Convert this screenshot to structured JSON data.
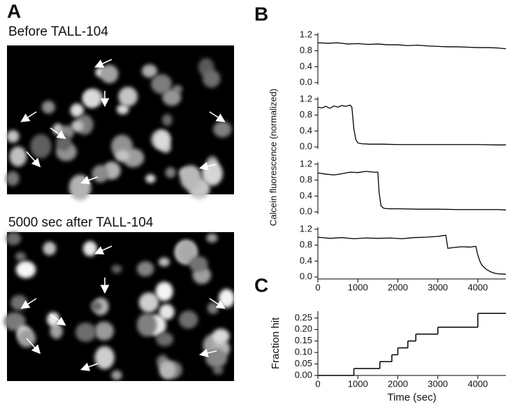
{
  "panel_labels": {
    "a": "A",
    "b": "B",
    "c": "C"
  },
  "images": [
    {
      "caption": "Before TALL-104"
    },
    {
      "caption": "5000 sec after TALL-104"
    }
  ],
  "shared_ylabel": "Calcein fluorescence (normalized)",
  "chart_data": [
    {
      "type": "line",
      "color": "#000000",
      "xlim": [
        0,
        4700
      ],
      "ylim": [
        -0.05,
        1.25
      ],
      "yticks": [
        {
          "value": 0,
          "label": "0.0"
        },
        0.4,
        0.8,
        1.2
      ],
      "x": [
        0,
        250,
        500,
        750,
        1000,
        1250,
        1500,
        1750,
        2000,
        2250,
        2500,
        2750,
        3000,
        3250,
        3500,
        3750,
        4000,
        4250,
        4500,
        4700
      ],
      "values": [
        1.0,
        0.99,
        1.0,
        0.97,
        0.98,
        0.96,
        0.97,
        0.95,
        0.95,
        0.93,
        0.94,
        0.92,
        0.91,
        0.9,
        0.9,
        0.89,
        0.88,
        0.88,
        0.87,
        0.85
      ]
    },
    {
      "type": "line",
      "color": "#000000",
      "xlim": [
        0,
        4700
      ],
      "ylim": [
        -0.05,
        1.25
      ],
      "yticks": [
        {
          "value": 0,
          "label": "0.0"
        },
        0.4,
        0.8,
        1.2
      ],
      "x": [
        0,
        100,
        200,
        300,
        400,
        500,
        600,
        700,
        800,
        850,
        900,
        950,
        1000,
        1100,
        1300,
        1600,
        2000,
        2500,
        3000,
        3500,
        4000,
        4500,
        4700
      ],
      "values": [
        1.0,
        0.98,
        1.02,
        0.97,
        1.03,
        1.0,
        1.04,
        1.02,
        1.05,
        1.0,
        0.45,
        0.18,
        0.1,
        0.08,
        0.07,
        0.07,
        0.06,
        0.06,
        0.06,
        0.06,
        0.06,
        0.05,
        0.05
      ]
    },
    {
      "type": "line",
      "color": "#000000",
      "xlim": [
        0,
        4700
      ],
      "ylim": [
        -0.05,
        1.25
      ],
      "yticks": [
        {
          "value": 0,
          "label": "0.0"
        },
        0.4,
        0.8,
        1.2
      ],
      "x": [
        0,
        200,
        400,
        600,
        800,
        1000,
        1200,
        1400,
        1500,
        1530,
        1580,
        1650,
        1800,
        2000,
        2500,
        3000,
        3500,
        4000,
        4500,
        4700
      ],
      "values": [
        0.98,
        0.95,
        0.93,
        0.96,
        1.0,
        0.99,
        1.02,
        1.0,
        1.0,
        0.5,
        0.15,
        0.09,
        0.08,
        0.08,
        0.07,
        0.07,
        0.06,
        0.06,
        0.06,
        0.05
      ]
    },
    {
      "type": "line",
      "color": "#000000",
      "xlim": [
        0,
        4700
      ],
      "ylim": [
        -0.05,
        1.25
      ],
      "yticks": [
        {
          "value": 0,
          "label": "0.0"
        },
        0.4,
        0.8,
        1.2
      ],
      "xticks": [
        0,
        1000,
        2000,
        3000,
        4000
      ],
      "x": [
        0,
        300,
        600,
        900,
        1200,
        1500,
        1800,
        2100,
        2400,
        2700,
        3000,
        3200,
        3250,
        3400,
        3600,
        3800,
        3950,
        4000,
        4050,
        4100,
        4200,
        4300,
        4400,
        4500,
        4700
      ],
      "values": [
        1.0,
        0.97,
        0.99,
        0.96,
        0.98,
        0.97,
        0.98,
        0.96,
        0.99,
        1.0,
        1.02,
        1.05,
        0.72,
        0.74,
        0.76,
        0.75,
        0.77,
        0.55,
        0.4,
        0.3,
        0.2,
        0.14,
        0.1,
        0.08,
        0.07
      ]
    },
    {
      "type": "step",
      "color": "#000000",
      "xlim": [
        0,
        4700
      ],
      "ylim": [
        0,
        0.28
      ],
      "ylabel": "Fraction hit",
      "xlabel": "Time (sec)",
      "yticks": [
        {
          "value": 0,
          "label": "0.00"
        },
        {
          "value": 0.05,
          "label": "0.05"
        },
        {
          "value": 0.1,
          "label": "0.10"
        },
        {
          "value": 0.15,
          "label": "0.15"
        },
        {
          "value": 0.2,
          "label": "0.20"
        },
        {
          "value": 0.25,
          "label": "0.25"
        }
      ],
      "xticks": [
        0,
        1000,
        2000,
        3000,
        4000
      ],
      "x": [
        0,
        900,
        1550,
        1850,
        2000,
        2250,
        2450,
        3000,
        4000,
        4700
      ],
      "values": [
        0,
        0.03,
        0.06,
        0.09,
        0.12,
        0.15,
        0.18,
        0.21,
        0.27,
        0.27
      ]
    }
  ]
}
